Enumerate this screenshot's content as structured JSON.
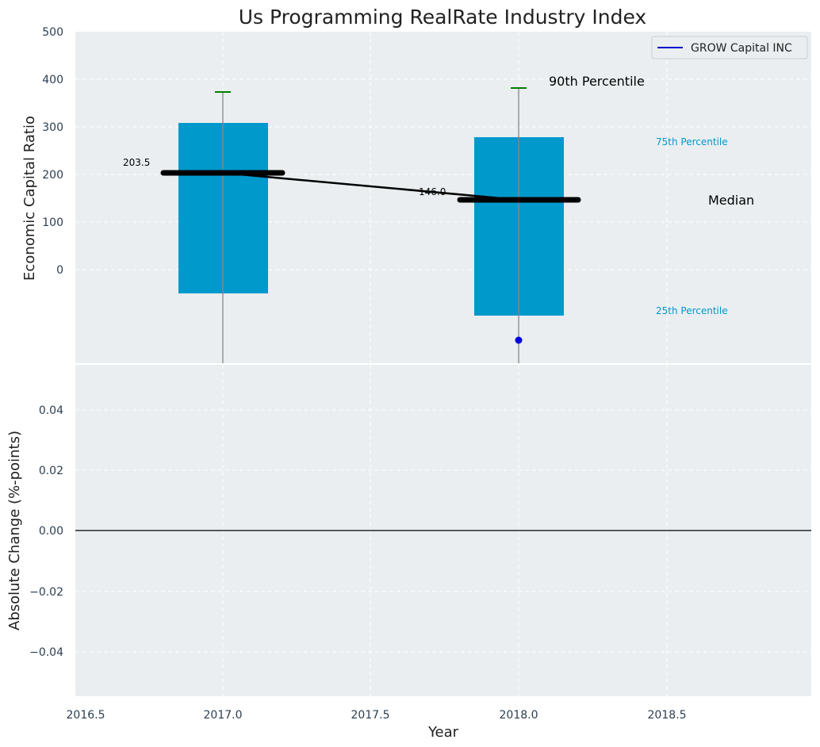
{
  "chart_data": {
    "type": "box",
    "title": "Us Programming RealRate Industry Index",
    "colors": {
      "box": "#0099cc",
      "median": "#000000",
      "whisker_cap": "#008000",
      "outlier": "#0000dd",
      "company_line": "#0000cc",
      "background": "#eaeef0"
    },
    "legend": {
      "position": "top-right",
      "entries": [
        "GROW Capital INC"
      ]
    },
    "top_panel": {
      "ylabel": "Economic Capital Ratio",
      "ylim": [
        -195,
        500
      ],
      "yticks": [
        "0",
        "100",
        "200",
        "300",
        "400",
        "500"
      ],
      "boxes": [
        {
          "x": 2017.0,
          "q1": -50,
          "q3": 308,
          "median": 203.5,
          "whisker_low": -195,
          "whisker_high": 372
        },
        {
          "x": 2018.0,
          "q1": -96,
          "q3": 278,
          "median": 146.0,
          "whisker_low": -195,
          "whisker_high": 380,
          "outliers": [
            -147
          ]
        }
      ],
      "median_line": {
        "x": [
          2017.0,
          2018.0
        ],
        "y": [
          203.5,
          146.0
        ]
      },
      "median_labels": [
        "203.5",
        "146.0"
      ],
      "annotations": {
        "p90": "90th Percentile",
        "p75": "75th Percentile",
        "median": "Median",
        "p25": "25th Percentile"
      }
    },
    "bottom_panel": {
      "ylabel": "Absolute Change (%-points)",
      "ylim": [
        -0.055,
        0.055
      ],
      "yticks": [
        "−0.04",
        "−0.02",
        "0.00",
        "0.02",
        "0.04"
      ],
      "zero_line": true
    },
    "xlabel": "Year",
    "xlim": [
      2016.5,
      2018.98
    ],
    "xticks": [
      "2016.5",
      "2017.0",
      "2017.5",
      "2018.0",
      "2018.5"
    ]
  }
}
